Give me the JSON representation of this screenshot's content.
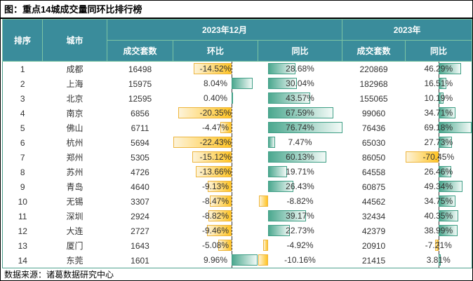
{
  "title": "图：重点14城成交量同环比排行榜",
  "source": "数据来源：诸葛数据研究中心",
  "columns": {
    "rank": "排序",
    "city": "城市",
    "dec_group": "2023年12月",
    "year_group": "2023年",
    "units": "成交套数",
    "mom": "环比",
    "yoy": "同比"
  },
  "colors": {
    "header_bg": "#3a8c9b",
    "header_border": "#7cc4a4",
    "table_border": "#4da08c",
    "positive_bar": "#4ca88f",
    "positive_bar_border": "#3e9e85",
    "positive_bar_fade": "#f2faf7",
    "negative_bar": "#ffc424",
    "negative_bar_border": "#edb53c",
    "negative_bar_fade": "#fdf3d9",
    "axis_line": "#333333"
  },
  "bars": {
    "dec_mom": {
      "min": -22.43,
      "max": 9.96,
      "axis_line": true
    },
    "dec_yoy": {
      "min": -10.16,
      "max": 76.74,
      "axis_line": false
    },
    "year_yoy": {
      "min": -70.45,
      "max": 69.18,
      "axis_line": true
    }
  },
  "chart_data": {
    "type": "table",
    "title": "重点14城成交量同环比排行榜",
    "column_headers": [
      "排序",
      "城市",
      "2023年12月 成交套数",
      "2023年12月 环比",
      "2023年12月 同比",
      "2023年 成交套数",
      "2023年 同比"
    ],
    "rows": [
      {
        "rank": 1,
        "city": "成都",
        "dec_units": 16498,
        "dec_mom": -14.52,
        "dec_yoy": 28.68,
        "year_units": 220869,
        "year_yoy": 46.29
      },
      {
        "rank": 2,
        "city": "上海",
        "dec_units": 15975,
        "dec_mom": 8.04,
        "dec_yoy": 30.04,
        "year_units": 182968,
        "year_yoy": 16.51
      },
      {
        "rank": 3,
        "city": "北京",
        "dec_units": 12595,
        "dec_mom": 0.4,
        "dec_yoy": 43.57,
        "year_units": 155065,
        "year_yoy": 10.19
      },
      {
        "rank": 4,
        "city": "南京",
        "dec_units": 6856,
        "dec_mom": -20.35,
        "dec_yoy": 67.59,
        "year_units": 99060,
        "year_yoy": 34.71
      },
      {
        "rank": 5,
        "city": "佛山",
        "dec_units": 6711,
        "dec_mom": -4.47,
        "dec_yoy": 76.74,
        "year_units": 76436,
        "year_yoy": 69.18
      },
      {
        "rank": 6,
        "city": "杭州",
        "dec_units": 5694,
        "dec_mom": -22.43,
        "dec_yoy": 7.47,
        "year_units": 65030,
        "year_yoy": 27.73
      },
      {
        "rank": 7,
        "city": "郑州",
        "dec_units": 5305,
        "dec_mom": -15.12,
        "dec_yoy": 60.13,
        "year_units": 86050,
        "year_yoy": -70.45
      },
      {
        "rank": 8,
        "city": "苏州",
        "dec_units": 4726,
        "dec_mom": -13.66,
        "dec_yoy": 19.71,
        "year_units": 64558,
        "year_yoy": 26.46
      },
      {
        "rank": 9,
        "city": "青岛",
        "dec_units": 4640,
        "dec_mom": -9.13,
        "dec_yoy": 26.43,
        "year_units": 60875,
        "year_yoy": 49.34
      },
      {
        "rank": 10,
        "city": "无锡",
        "dec_units": 3307,
        "dec_mom": -8.47,
        "dec_yoy": -8.82,
        "year_units": 44562,
        "year_yoy": 34.75
      },
      {
        "rank": 11,
        "city": "深圳",
        "dec_units": 2924,
        "dec_mom": -8.82,
        "dec_yoy": 39.17,
        "year_units": 32434,
        "year_yoy": 40.35
      },
      {
        "rank": 12,
        "city": "大连",
        "dec_units": 2727,
        "dec_mom": -9.46,
        "dec_yoy": 22.73,
        "year_units": 42379,
        "year_yoy": 38.99
      },
      {
        "rank": 13,
        "city": "厦门",
        "dec_units": 1643,
        "dec_mom": -5.08,
        "dec_yoy": -4.92,
        "year_units": 20910,
        "year_yoy": -7.21
      },
      {
        "rank": 14,
        "city": "东莞",
        "dec_units": 1601,
        "dec_mom": 9.96,
        "dec_yoy": -10.16,
        "year_units": 21415,
        "year_yoy": 3.81
      }
    ]
  }
}
